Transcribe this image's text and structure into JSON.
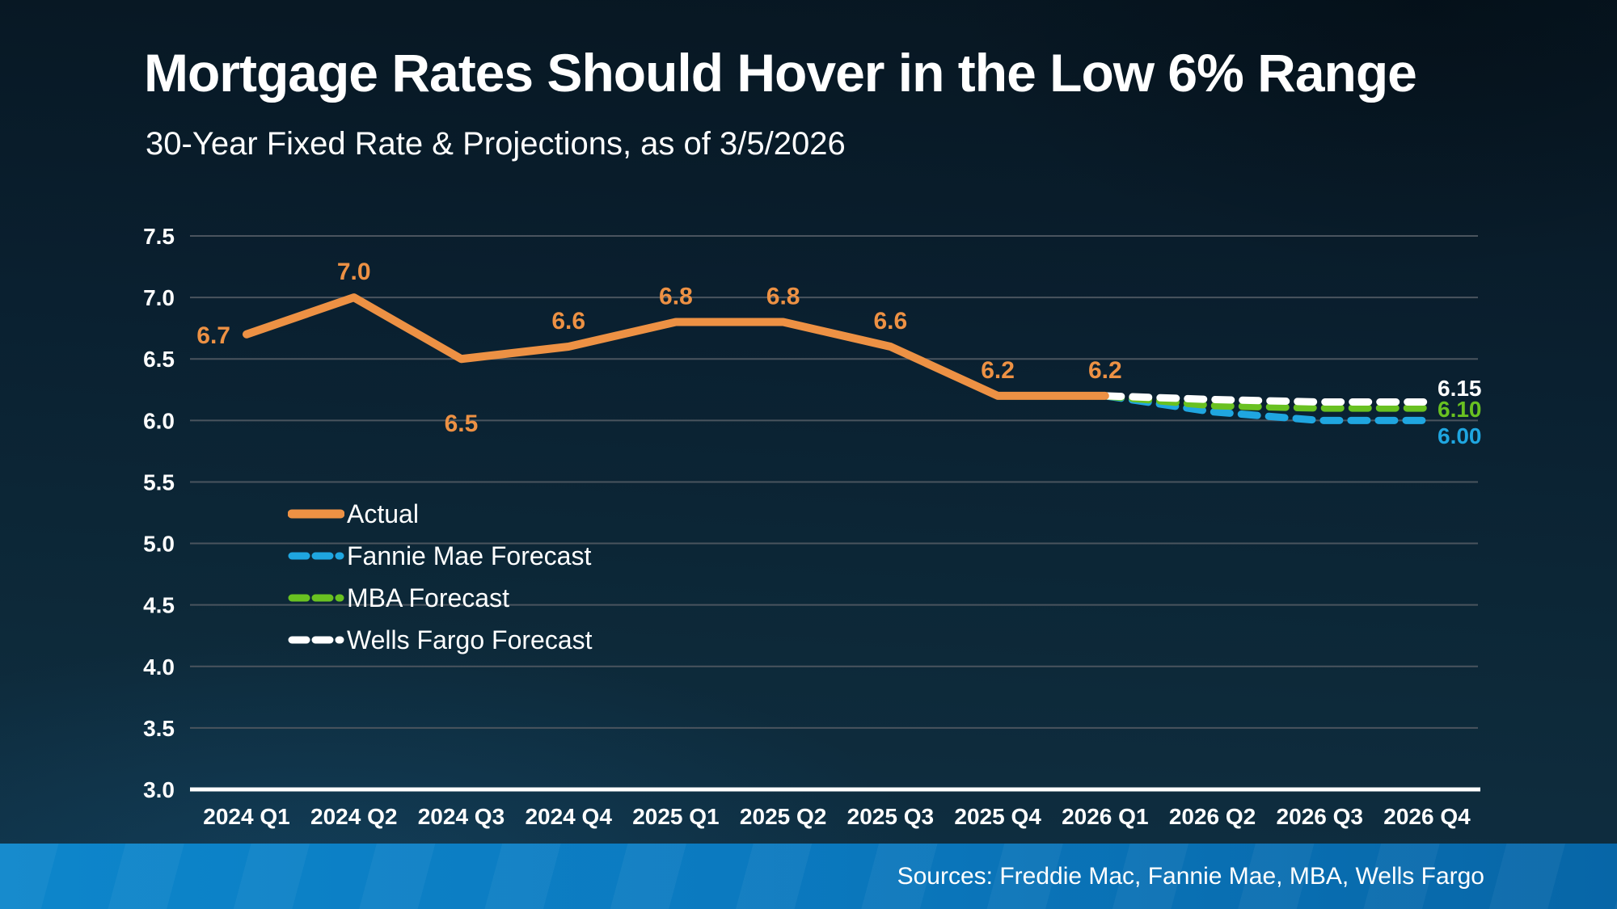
{
  "slide": {
    "title": "Mortgage Rates Should Hover in the Low 6% Range",
    "subtitle": "30-Year Fixed Rate & Projections, as of 3/5/2026",
    "sources": "Sources: Freddie Mac, Fannie Mae, MBA, Wells Fargo"
  },
  "chart_data": {
    "type": "line",
    "title": "30-Year Fixed Rate & Projections, as of 3/5/2026",
    "categories": [
      "2024 Q1",
      "2024 Q2",
      "2024 Q3",
      "2024 Q4",
      "2025 Q1",
      "2025 Q2",
      "2025 Q3",
      "2025 Q4",
      "2026 Q1",
      "2026 Q2",
      "2026 Q3",
      "2026 Q4"
    ],
    "ylim": [
      3.0,
      7.5
    ],
    "ytick_step": 0.5,
    "ytick_labels": [
      "3.0",
      "3.5",
      "4.0",
      "4.5",
      "5.0",
      "5.5",
      "6.0",
      "6.5",
      "7.0",
      "7.5"
    ],
    "grid": true,
    "legend_position": "inside-left",
    "series": [
      {
        "name": "Actual",
        "type": "solid",
        "color": "#ED9144",
        "values": [
          6.7,
          7.0,
          6.5,
          6.6,
          6.8,
          6.8,
          6.6,
          6.2,
          6.2,
          null,
          null,
          null
        ],
        "point_labels": [
          "6.7",
          "7.0",
          "6.5",
          "6.6",
          "6.8",
          "6.8",
          "6.6",
          "6.2",
          "6.2"
        ],
        "point_label_pos": [
          "left",
          "above",
          "below",
          "above",
          "above",
          "above",
          "above",
          "above",
          "above"
        ]
      },
      {
        "name": "Fannie Mae Forecast",
        "type": "dashed",
        "color": "#1FA6E0",
        "values": [
          null,
          null,
          null,
          null,
          null,
          null,
          null,
          null,
          6.2,
          6.07,
          6.0,
          6.0
        ],
        "end_label": "6.00"
      },
      {
        "name": "MBA Forecast",
        "type": "dashed",
        "color": "#69C121",
        "values": [
          null,
          null,
          null,
          null,
          null,
          null,
          null,
          null,
          6.2,
          6.12,
          6.1,
          6.1
        ],
        "end_label": "6.10"
      },
      {
        "name": "Wells Fargo Forecast",
        "type": "dashed",
        "color": "#FFFFFF",
        "values": [
          null,
          null,
          null,
          null,
          null,
          null,
          null,
          null,
          6.2,
          6.17,
          6.15,
          6.15
        ],
        "end_label": "6.15"
      }
    ]
  },
  "colors": {
    "grid_line": "#4A545E",
    "axis_line": "#FFFFFF",
    "axis_text": "#FFFFFF"
  }
}
